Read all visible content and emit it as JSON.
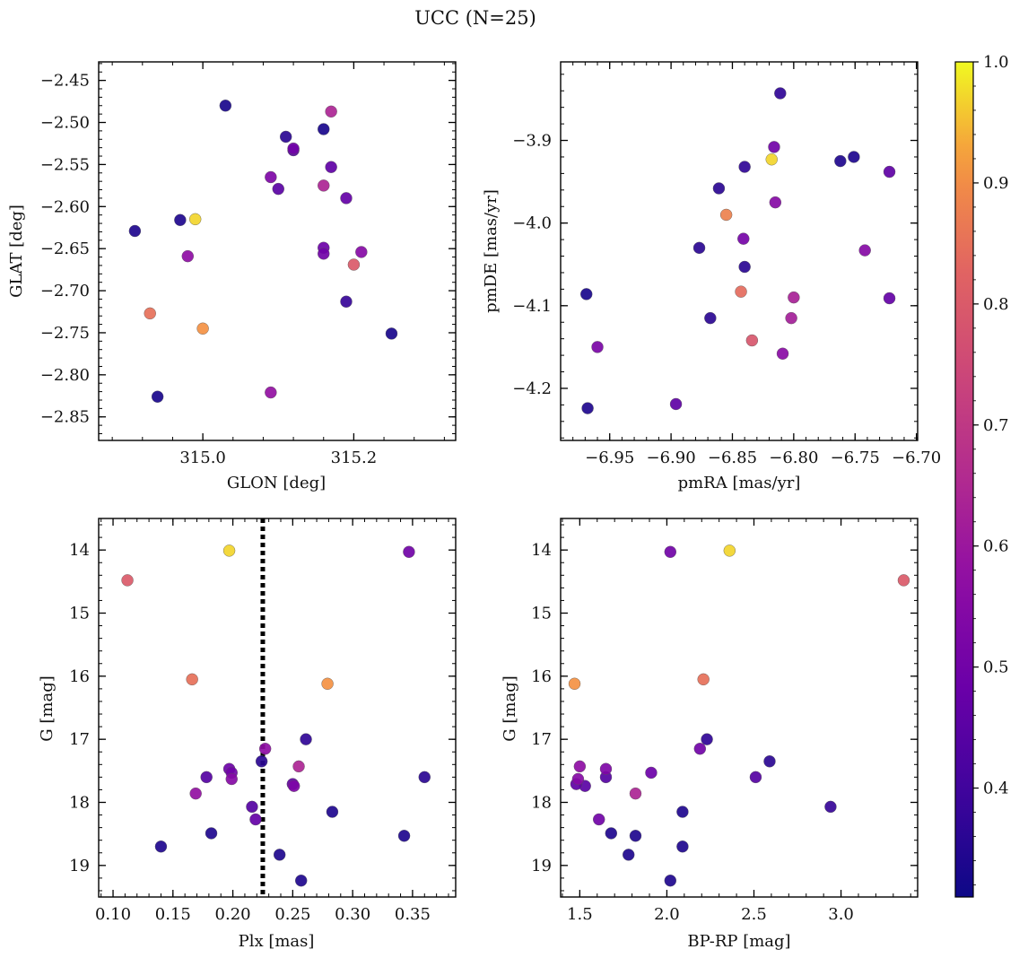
{
  "figure": {
    "title": "UCC (N=25)",
    "colorbar": {
      "min": 0.31,
      "max": 1.0,
      "ticks": [
        0.4,
        0.5,
        0.6,
        0.7,
        0.8,
        0.9,
        1.0
      ],
      "tick_labels": [
        "0.4",
        "0.5",
        "0.6",
        "0.7",
        "0.8",
        "0.9",
        "1.0"
      ]
    }
  },
  "chart_data": [
    {
      "type": "scatter",
      "xlabel": "GLON [deg]",
      "ylabel": "GLAT [deg]",
      "xlim": [
        314.862,
        315.335
      ],
      "ylim": [
        -2.878,
        -2.428
      ],
      "xticks": [
        315.0,
        315.2
      ],
      "xtick_labels": [
        "315.0",
        "315.2"
      ],
      "yticks": [
        -2.45,
        -2.5,
        -2.55,
        -2.6,
        -2.65,
        -2.7,
        -2.75,
        -2.8,
        -2.85
      ],
      "ytick_labels": [
        "−2.45",
        "−2.50",
        "−2.55",
        "−2.60",
        "−2.65",
        "−2.70",
        "−2.75",
        "−2.80",
        "−2.85"
      ],
      "points": [
        {
          "x": 315.03,
          "y": -2.48,
          "c": 0.33
        },
        {
          "x": 315.17,
          "y": -2.487,
          "c": 0.64
        },
        {
          "x": 315.11,
          "y": -2.517,
          "c": 0.36
        },
        {
          "x": 315.16,
          "y": -2.508,
          "c": 0.33
        },
        {
          "x": 315.12,
          "y": -2.533,
          "c": 0.44
        },
        {
          "x": 315.12,
          "y": -2.531,
          "c": 0.5
        },
        {
          "x": 315.17,
          "y": -2.553,
          "c": 0.46
        },
        {
          "x": 315.09,
          "y": -2.565,
          "c": 0.53
        },
        {
          "x": 315.1,
          "y": -2.579,
          "c": 0.45
        },
        {
          "x": 315.16,
          "y": -2.575,
          "c": 0.64
        },
        {
          "x": 315.19,
          "y": -2.59,
          "c": 0.47
        },
        {
          "x": 314.99,
          "y": -2.615,
          "c": 0.97
        },
        {
          "x": 314.97,
          "y": -2.616,
          "c": 0.34
        },
        {
          "x": 314.91,
          "y": -2.629,
          "c": 0.34
        },
        {
          "x": 315.16,
          "y": -2.649,
          "c": 0.49
        },
        {
          "x": 315.16,
          "y": -2.656,
          "c": 0.5
        },
        {
          "x": 315.21,
          "y": -2.654,
          "c": 0.55
        },
        {
          "x": 314.98,
          "y": -2.659,
          "c": 0.57
        },
        {
          "x": 315.2,
          "y": -2.669,
          "c": 0.8
        },
        {
          "x": 315.19,
          "y": -2.713,
          "c": 0.38
        },
        {
          "x": 314.93,
          "y": -2.727,
          "c": 0.85
        },
        {
          "x": 315.0,
          "y": -2.745,
          "c": 0.91
        },
        {
          "x": 315.25,
          "y": -2.751,
          "c": 0.33
        },
        {
          "x": 314.94,
          "y": -2.826,
          "c": 0.33
        },
        {
          "x": 315.09,
          "y": -2.821,
          "c": 0.58
        }
      ]
    },
    {
      "type": "scatter",
      "xlabel": "pmRA [mas/yr]",
      "ylabel": "pmDE [mas/yr]",
      "xlim": [
        -6.99,
        -6.699
      ],
      "ylim": [
        -4.263,
        -3.805
      ],
      "xticks": [
        -6.95,
        -6.9,
        -6.85,
        -6.8,
        -6.75,
        -6.7
      ],
      "xtick_labels": [
        "−6.95",
        "−6.90",
        "−6.85",
        "−6.80",
        "−6.75",
        "−6.70"
      ],
      "yticks": [
        -3.9,
        -4.0,
        -4.1,
        -4.2
      ],
      "ytick_labels": [
        "−3.9",
        "−4.0",
        "−4.1",
        "−4.2"
      ],
      "points": [
        {
          "x": -6.811,
          "y": -3.843,
          "c": 0.37
        },
        {
          "x": -6.816,
          "y": -3.908,
          "c": 0.5
        },
        {
          "x": -6.818,
          "y": -3.923,
          "c": 0.97
        },
        {
          "x": -6.762,
          "y": -3.925,
          "c": 0.34
        },
        {
          "x": -6.751,
          "y": -3.92,
          "c": 0.34
        },
        {
          "x": -6.722,
          "y": -3.938,
          "c": 0.46
        },
        {
          "x": -6.84,
          "y": -3.932,
          "c": 0.37
        },
        {
          "x": -6.861,
          "y": -3.958,
          "c": 0.36
        },
        {
          "x": -6.815,
          "y": -3.975,
          "c": 0.55
        },
        {
          "x": -6.855,
          "y": -3.99,
          "c": 0.88
        },
        {
          "x": -6.841,
          "y": -4.019,
          "c": 0.51
        },
        {
          "x": -6.742,
          "y": -4.033,
          "c": 0.55
        },
        {
          "x": -6.877,
          "y": -4.03,
          "c": 0.36
        },
        {
          "x": -6.84,
          "y": -4.053,
          "c": 0.36
        },
        {
          "x": -6.969,
          "y": -4.086,
          "c": 0.33
        },
        {
          "x": -6.843,
          "y": -4.083,
          "c": 0.84
        },
        {
          "x": -6.8,
          "y": -4.09,
          "c": 0.63
        },
        {
          "x": -6.722,
          "y": -4.091,
          "c": 0.47
        },
        {
          "x": -6.868,
          "y": -4.115,
          "c": 0.36
        },
        {
          "x": -6.802,
          "y": -4.115,
          "c": 0.62
        },
        {
          "x": -6.834,
          "y": -4.142,
          "c": 0.79
        },
        {
          "x": -6.96,
          "y": -4.15,
          "c": 0.52
        },
        {
          "x": -6.809,
          "y": -4.158,
          "c": 0.56
        },
        {
          "x": -6.896,
          "y": -4.219,
          "c": 0.46
        },
        {
          "x": -6.968,
          "y": -4.224,
          "c": 0.34
        }
      ]
    },
    {
      "type": "scatter",
      "xlabel": "Plx [mas]",
      "ylabel": "G [mag]",
      "xlim": [
        0.088,
        0.386
      ],
      "ylim": [
        19.5,
        13.5
      ],
      "xticks": [
        0.1,
        0.15,
        0.2,
        0.25,
        0.3,
        0.35
      ],
      "xtick_labels": [
        "0.10",
        "0.15",
        "0.20",
        "0.25",
        "0.30",
        "0.35"
      ],
      "yticks": [
        14,
        15,
        16,
        17,
        18,
        19
      ],
      "ytick_labels": [
        "14",
        "15",
        "16",
        "17",
        "18",
        "19"
      ],
      "vline": 0.225,
      "points": [
        {
          "x": 0.197,
          "y": 14.01,
          "c": 0.97
        },
        {
          "x": 0.347,
          "y": 14.03,
          "c": 0.5
        },
        {
          "x": 0.112,
          "y": 14.48,
          "c": 0.8
        },
        {
          "x": 0.166,
          "y": 16.05,
          "c": 0.85
        },
        {
          "x": 0.279,
          "y": 16.12,
          "c": 0.91
        },
        {
          "x": 0.261,
          "y": 17.0,
          "c": 0.37
        },
        {
          "x": 0.227,
          "y": 17.15,
          "c": 0.57
        },
        {
          "x": 0.224,
          "y": 17.35,
          "c": 0.36
        },
        {
          "x": 0.255,
          "y": 17.43,
          "c": 0.64
        },
        {
          "x": 0.197,
          "y": 17.47,
          "c": 0.49
        },
        {
          "x": 0.199,
          "y": 17.53,
          "c": 0.5
        },
        {
          "x": 0.178,
          "y": 17.6,
          "c": 0.44
        },
        {
          "x": 0.199,
          "y": 17.63,
          "c": 0.55
        },
        {
          "x": 0.36,
          "y": 17.6,
          "c": 0.36
        },
        {
          "x": 0.25,
          "y": 17.71,
          "c": 0.46
        },
        {
          "x": 0.251,
          "y": 17.74,
          "c": 0.53
        },
        {
          "x": 0.169,
          "y": 17.86,
          "c": 0.58
        },
        {
          "x": 0.216,
          "y": 18.07,
          "c": 0.44
        },
        {
          "x": 0.283,
          "y": 18.15,
          "c": 0.34
        },
        {
          "x": 0.219,
          "y": 18.27,
          "c": 0.47
        },
        {
          "x": 0.182,
          "y": 18.49,
          "c": 0.34
        },
        {
          "x": 0.343,
          "y": 18.53,
          "c": 0.34
        },
        {
          "x": 0.14,
          "y": 18.7,
          "c": 0.34
        },
        {
          "x": 0.239,
          "y": 18.83,
          "c": 0.34
        },
        {
          "x": 0.257,
          "y": 19.24,
          "c": 0.34
        }
      ]
    },
    {
      "type": "scatter",
      "xlabel": "BP-RP [mag]",
      "ylabel": "G [mag]",
      "xlim": [
        1.39,
        3.44
      ],
      "ylim": [
        19.5,
        13.5
      ],
      "xticks": [
        1.5,
        2.0,
        2.5,
        3.0
      ],
      "xtick_labels": [
        "1.5",
        "2.0",
        "2.5",
        "3.0"
      ],
      "yticks": [
        14,
        15,
        16,
        17,
        18,
        19
      ],
      "ytick_labels": [
        "14",
        "15",
        "16",
        "17",
        "18",
        "19"
      ],
      "points": [
        {
          "x": 2.02,
          "y": 14.03,
          "c": 0.5
        },
        {
          "x": 2.36,
          "y": 14.01,
          "c": 0.97
        },
        {
          "x": 3.36,
          "y": 14.48,
          "c": 0.8
        },
        {
          "x": 1.47,
          "y": 16.12,
          "c": 0.91
        },
        {
          "x": 2.21,
          "y": 16.05,
          "c": 0.85
        },
        {
          "x": 2.23,
          "y": 17.0,
          "c": 0.37
        },
        {
          "x": 2.19,
          "y": 17.15,
          "c": 0.5
        },
        {
          "x": 2.59,
          "y": 17.35,
          "c": 0.36
        },
        {
          "x": 1.5,
          "y": 17.43,
          "c": 0.57
        },
        {
          "x": 1.65,
          "y": 17.47,
          "c": 0.53
        },
        {
          "x": 1.91,
          "y": 17.53,
          "c": 0.49
        },
        {
          "x": 1.49,
          "y": 17.63,
          "c": 0.55
        },
        {
          "x": 1.65,
          "y": 17.6,
          "c": 0.44
        },
        {
          "x": 2.51,
          "y": 17.6,
          "c": 0.44
        },
        {
          "x": 1.48,
          "y": 17.71,
          "c": 0.46
        },
        {
          "x": 1.53,
          "y": 17.74,
          "c": 0.45
        },
        {
          "x": 1.82,
          "y": 17.86,
          "c": 0.64
        },
        {
          "x": 2.94,
          "y": 18.07,
          "c": 0.38
        },
        {
          "x": 2.09,
          "y": 18.15,
          "c": 0.34
        },
        {
          "x": 1.61,
          "y": 18.27,
          "c": 0.5
        },
        {
          "x": 1.68,
          "y": 18.49,
          "c": 0.34
        },
        {
          "x": 1.82,
          "y": 18.53,
          "c": 0.34
        },
        {
          "x": 2.09,
          "y": 18.7,
          "c": 0.34
        },
        {
          "x": 1.78,
          "y": 18.83,
          "c": 0.34
        },
        {
          "x": 2.02,
          "y": 19.24,
          "c": 0.34
        }
      ]
    }
  ]
}
